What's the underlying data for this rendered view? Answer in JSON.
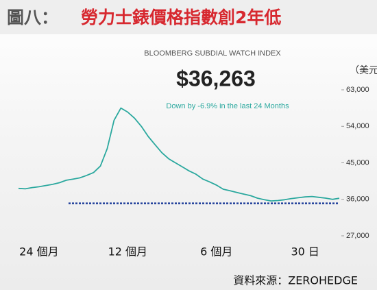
{
  "chart_data": {
    "type": "line",
    "figure_label": "圖八：",
    "title": "勞力士錶價格指數創2年低",
    "subtitle": "BLOOMBERG SUBDIAL WATCH INDEX",
    "headline": "$36,263",
    "annotation": "Down by -6.9% in the last 24 Months",
    "unit_label": "（美元）",
    "source": "資料來源：ZEROHEDGE",
    "categories": [
      null,
      null,
      null,
      "24 個月",
      null,
      null,
      null,
      null,
      null,
      null,
      null,
      null,
      null,
      null,
      null,
      null,
      "12 個月",
      null,
      null,
      null,
      null,
      null,
      null,
      null,
      null,
      null,
      null,
      null,
      null,
      "6 個月",
      null,
      null,
      null,
      null,
      null,
      null,
      null,
      null,
      null,
      null,
      null,
      null,
      "30 日",
      null,
      null,
      null,
      null,
      null
    ],
    "series": [
      {
        "color": "#2aa89e",
        "values": [
          38700,
          38600,
          38900,
          39100,
          39400,
          39700,
          40100,
          40700,
          41000,
          41300,
          41900,
          42600,
          44200,
          48500,
          55500,
          58500,
          57500,
          56000,
          54000,
          51500,
          49500,
          47500,
          46000,
          45000,
          44000,
          43000,
          42200,
          41000,
          40300,
          39500,
          38500,
          38100,
          37700,
          37300,
          36900,
          36300,
          35900,
          35600,
          35700,
          35900,
          36200,
          36400,
          36600,
          36700,
          36500,
          36300,
          36000,
          36263
        ]
      }
    ],
    "reference_line": {
      "value": 35000,
      "color": "#1f3f9a"
    },
    "ylim": [
      27000,
      63000
    ],
    "yticks": [
      {
        "value": 27000,
        "label": "27,000"
      },
      {
        "value": 36000,
        "label": "36,000"
      },
      {
        "value": 45000,
        "label": "45,000"
      },
      {
        "value": 54000,
        "label": "54,000"
      },
      {
        "value": 63000,
        "label": "63,000"
      }
    ]
  }
}
